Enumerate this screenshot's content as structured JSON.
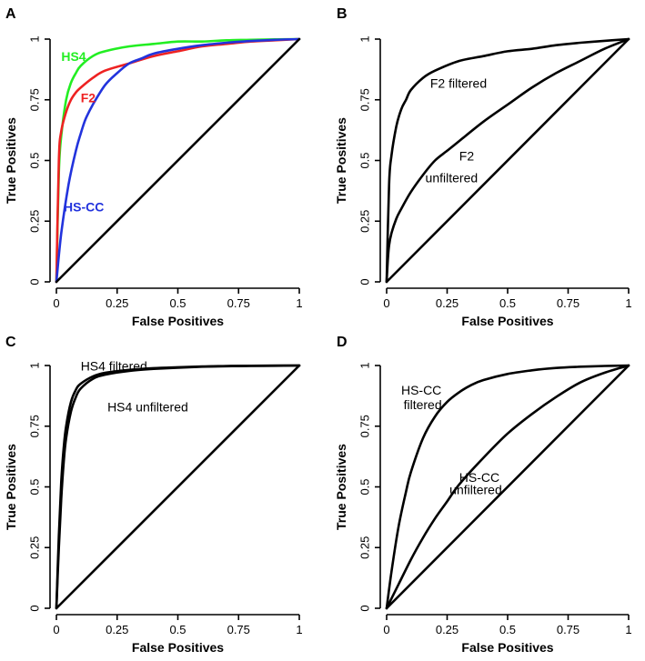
{
  "chart_data": [
    {
      "panel": "A",
      "type": "line",
      "xlabel": "False Positives",
      "ylabel": "True Positives",
      "xlim": [
        0,
        1
      ],
      "ylim": [
        0,
        1
      ],
      "xticks": [
        "0",
        "0.25",
        "0.5",
        "0.75",
        "1"
      ],
      "yticks": [
        "0",
        "0.25",
        "0.5",
        "0.75",
        "1"
      ],
      "series": [
        {
          "name": "HS4",
          "color": "#22ee22",
          "x": [
            0,
            0.01,
            0.02,
            0.04,
            0.06,
            0.08,
            0.1,
            0.15,
            0.2,
            0.3,
            0.4,
            0.5,
            0.6,
            0.7,
            0.8,
            0.9,
            1
          ],
          "y": [
            0,
            0.45,
            0.6,
            0.75,
            0.82,
            0.86,
            0.89,
            0.93,
            0.95,
            0.97,
            0.98,
            0.99,
            0.99,
            0.995,
            0.997,
            0.999,
            1
          ]
        },
        {
          "name": "F2",
          "color": "#ee2222",
          "x": [
            0,
            0.01,
            0.02,
            0.04,
            0.06,
            0.08,
            0.1,
            0.15,
            0.2,
            0.3,
            0.4,
            0.5,
            0.6,
            0.7,
            0.8,
            0.9,
            1
          ],
          "y": [
            0,
            0.5,
            0.62,
            0.7,
            0.75,
            0.78,
            0.8,
            0.84,
            0.87,
            0.9,
            0.93,
            0.95,
            0.97,
            0.98,
            0.99,
            0.995,
            1
          ]
        },
        {
          "name": "HS-CC",
          "color": "#2233dd",
          "x": [
            0,
            0.02,
            0.05,
            0.08,
            0.1,
            0.12,
            0.15,
            0.2,
            0.25,
            0.3,
            0.35,
            0.4,
            0.5,
            0.6,
            0.7,
            0.8,
            0.9,
            1
          ],
          "y": [
            0,
            0.2,
            0.4,
            0.54,
            0.61,
            0.67,
            0.73,
            0.81,
            0.86,
            0.9,
            0.92,
            0.94,
            0.96,
            0.975,
            0.985,
            0.992,
            0.997,
            1
          ]
        },
        {
          "name": "diagonal",
          "color": "#000000",
          "x": [
            0,
            1
          ],
          "y": [
            0,
            1
          ]
        }
      ],
      "annotations": [
        {
          "text": "HS4",
          "color": "#22ee22",
          "x": 0.02,
          "y": 0.91
        },
        {
          "text": "F2",
          "color": "#ee2222",
          "x": 0.1,
          "y": 0.74
        },
        {
          "text": "HS-CC",
          "color": "#2233dd",
          "x": 0.03,
          "y": 0.29
        }
      ]
    },
    {
      "panel": "B",
      "type": "line",
      "xlabel": "False Positives",
      "ylabel": "True Positives",
      "xlim": [
        0,
        1
      ],
      "ylim": [
        0,
        1
      ],
      "xticks": [
        "0",
        "0.25",
        "0.5",
        "0.75",
        "1"
      ],
      "yticks": [
        "0",
        "0.25",
        "0.5",
        "0.75",
        "1"
      ],
      "series": [
        {
          "name": "F2 filtered",
          "color": "#000000",
          "x": [
            0,
            0.01,
            0.02,
            0.04,
            0.06,
            0.08,
            0.1,
            0.15,
            0.2,
            0.3,
            0.4,
            0.5,
            0.6,
            0.7,
            0.8,
            0.9,
            1
          ],
          "y": [
            0,
            0.4,
            0.52,
            0.64,
            0.71,
            0.75,
            0.79,
            0.84,
            0.87,
            0.91,
            0.93,
            0.95,
            0.96,
            0.975,
            0.985,
            0.993,
            1
          ]
        },
        {
          "name": "F2 unfiltered",
          "color": "#000000",
          "x": [
            0,
            0.005,
            0.01,
            0.02,
            0.04,
            0.06,
            0.1,
            0.15,
            0.2,
            0.25,
            0.3,
            0.4,
            0.5,
            0.6,
            0.7,
            0.8,
            0.9,
            1
          ],
          "y": [
            0,
            0.09,
            0.15,
            0.2,
            0.26,
            0.3,
            0.37,
            0.44,
            0.5,
            0.54,
            0.58,
            0.66,
            0.73,
            0.8,
            0.86,
            0.91,
            0.96,
            1
          ]
        },
        {
          "name": "diagonal",
          "color": "#000000",
          "x": [
            0,
            1
          ],
          "y": [
            0,
            1
          ]
        }
      ],
      "annotations": [
        {
          "text": "F2 filtered",
          "color": "#000000",
          "x": 0.18,
          "y": 0.8
        },
        {
          "text": "F2",
          "color": "#000000",
          "x": 0.3,
          "y": 0.5
        },
        {
          "text": "unfiltered",
          "color": "#000000",
          "x": 0.16,
          "y": 0.41
        }
      ]
    },
    {
      "panel": "C",
      "type": "line",
      "xlabel": "False Positives",
      "ylabel": "True Positives",
      "xlim": [
        0,
        1
      ],
      "ylim": [
        0,
        1
      ],
      "xticks": [
        "0",
        "0.25",
        "0.5",
        "0.75",
        "1"
      ],
      "yticks": [
        "0",
        "0.25",
        "0.5",
        "0.75",
        "1"
      ],
      "series": [
        {
          "name": "HS4 filtered",
          "color": "#000000",
          "x": [
            0,
            0.01,
            0.02,
            0.03,
            0.04,
            0.06,
            0.08,
            0.1,
            0.15,
            0.2,
            0.3,
            0.4,
            0.5,
            0.6,
            0.7,
            0.8,
            0.9,
            1
          ],
          "y": [
            0,
            0.3,
            0.52,
            0.66,
            0.75,
            0.85,
            0.9,
            0.925,
            0.955,
            0.97,
            0.982,
            0.989,
            0.993,
            0.996,
            0.998,
            0.999,
            0.9995,
            1
          ]
        },
        {
          "name": "HS4 unfiltered",
          "color": "#000000",
          "x": [
            0,
            0.01,
            0.02,
            0.03,
            0.04,
            0.06,
            0.08,
            0.1,
            0.15,
            0.2,
            0.3,
            0.4,
            0.5,
            0.6,
            0.7,
            0.8,
            0.9,
            1
          ],
          "y": [
            0,
            0.25,
            0.45,
            0.6,
            0.7,
            0.81,
            0.87,
            0.905,
            0.945,
            0.962,
            0.978,
            0.986,
            0.991,
            0.995,
            0.997,
            0.998,
            0.999,
            1
          ]
        },
        {
          "name": "diagonal",
          "color": "#000000",
          "x": [
            0,
            1
          ],
          "y": [
            0,
            1
          ]
        }
      ],
      "annotations": [
        {
          "text": "HS4 filtered",
          "color": "#000000",
          "x": 0.1,
          "y": 0.98
        },
        {
          "text": "HS4 unfiltered",
          "color": "#000000",
          "x": 0.21,
          "y": 0.81
        }
      ]
    },
    {
      "panel": "D",
      "type": "line",
      "xlabel": "False Positives",
      "ylabel": "True Positives",
      "xlim": [
        0,
        1
      ],
      "ylim": [
        0,
        1
      ],
      "xticks": [
        "0",
        "0.25",
        "0.5",
        "0.75",
        "1"
      ],
      "yticks": [
        "0",
        "0.25",
        "0.5",
        "0.75",
        "1"
      ],
      "series": [
        {
          "name": "HS-CC filtered",
          "color": "#000000",
          "x": [
            0,
            0.02,
            0.05,
            0.08,
            0.1,
            0.15,
            0.2,
            0.25,
            0.3,
            0.35,
            0.4,
            0.5,
            0.6,
            0.7,
            0.8,
            0.9,
            1
          ],
          "y": [
            0,
            0.15,
            0.34,
            0.48,
            0.56,
            0.7,
            0.79,
            0.85,
            0.89,
            0.92,
            0.94,
            0.965,
            0.98,
            0.99,
            0.995,
            0.998,
            1
          ]
        },
        {
          "name": "HS-CC unfiltered",
          "color": "#000000",
          "x": [
            0,
            0.05,
            0.1,
            0.15,
            0.2,
            0.25,
            0.3,
            0.4,
            0.5,
            0.6,
            0.7,
            0.8,
            0.9,
            1
          ],
          "y": [
            0,
            0.1,
            0.2,
            0.29,
            0.37,
            0.44,
            0.51,
            0.62,
            0.72,
            0.8,
            0.87,
            0.93,
            0.97,
            1
          ]
        },
        {
          "name": "diagonal",
          "color": "#000000",
          "x": [
            0,
            1
          ],
          "y": [
            0,
            1
          ]
        }
      ],
      "annotations": [
        {
          "text": "HS-CC",
          "color": "#000000",
          "x": 0.06,
          "y": 0.88
        },
        {
          "text": "filtered",
          "color": "#000000",
          "x": 0.07,
          "y": 0.82
        },
        {
          "text": "HS-CC",
          "color": "#000000",
          "x": 0.3,
          "y": 0.52
        },
        {
          "text": "unfiltered",
          "color": "#000000",
          "x": 0.26,
          "y": 0.47
        }
      ]
    }
  ],
  "panel_labels": [
    "A",
    "B",
    "C",
    "D"
  ]
}
